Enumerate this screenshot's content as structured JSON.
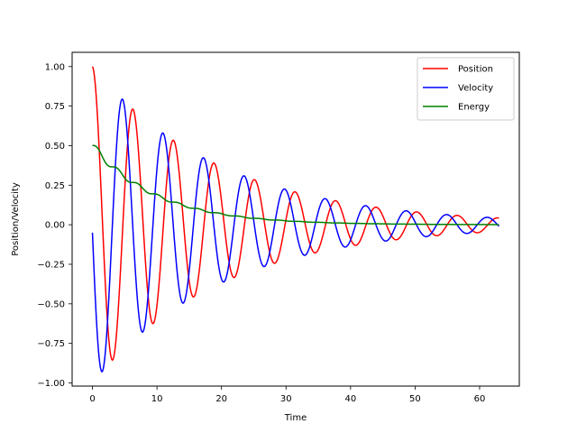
{
  "chart_data": {
    "type": "line",
    "title": "",
    "xlabel": "Time",
    "ylabel": "Position/Velocity",
    "xlim": [
      -3.15,
      66.15
    ],
    "ylim": [
      -1.02,
      1.09
    ],
    "xticks": [
      0,
      10,
      20,
      30,
      40,
      50,
      60
    ],
    "xtick_labels": [
      "0",
      "10",
      "20",
      "30",
      "40",
      "50",
      "60"
    ],
    "yticks": [
      -1.0,
      -0.75,
      -0.5,
      -0.25,
      0.0,
      0.25,
      0.5,
      0.75,
      1.0
    ],
    "ytick_labels": [
      "−1.00",
      "−0.75",
      "−0.50",
      "−0.25",
      "0.00",
      "0.25",
      "0.50",
      "0.75",
      "1.00"
    ],
    "grid": false,
    "legend": {
      "position": "top-right"
    },
    "model": {
      "description_omitted": true,
      "t_start": 0,
      "t_end": 63,
      "samples": 801,
      "damping": 0.05,
      "omega": 1
    },
    "series": [
      {
        "name": "Position",
        "color": "#ff0000",
        "key": "position"
      },
      {
        "name": "Velocity",
        "color": "#0000ff",
        "key": "velocity"
      },
      {
        "name": "Energy",
        "color": "#008000",
        "key": "energy"
      }
    ]
  }
}
